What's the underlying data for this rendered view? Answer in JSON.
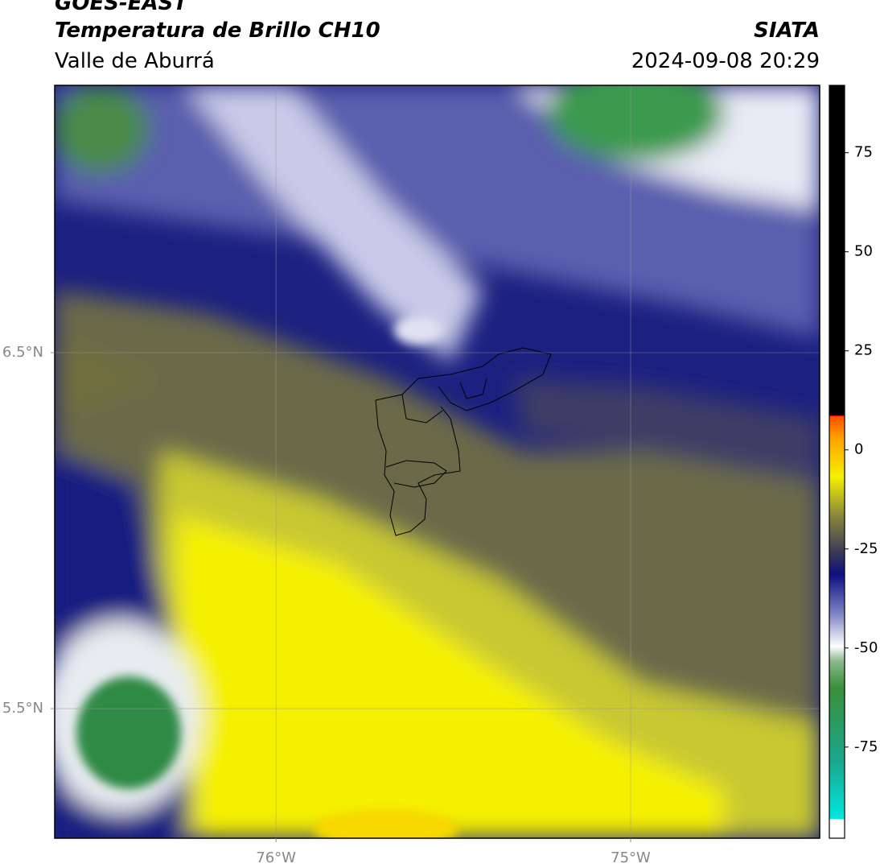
{
  "header": {
    "title": "GOES-EAST",
    "subtitle": "Temperatura de Brillo CH10",
    "region": "Valle de Aburrá",
    "source": "SIATA",
    "datetime": "2024-09-08 20:29"
  },
  "map": {
    "xlim": [
      -76.624,
      -74.467
    ],
    "ylim": [
      5.136,
      7.251
    ],
    "xticks": [
      {
        "value": -76,
        "label": "76°W"
      },
      {
        "value": -75,
        "label": "75°W"
      }
    ],
    "yticks": [
      {
        "value": 6.5,
        "label": "6.5°N"
      },
      {
        "value": 5.5,
        "label": "5.5°N"
      }
    ],
    "grid": true
  },
  "colorbar": {
    "lim": [
      -98,
      92
    ],
    "ticks": [
      75,
      50,
      25,
      0,
      -25,
      -50,
      -75
    ]
  }
}
